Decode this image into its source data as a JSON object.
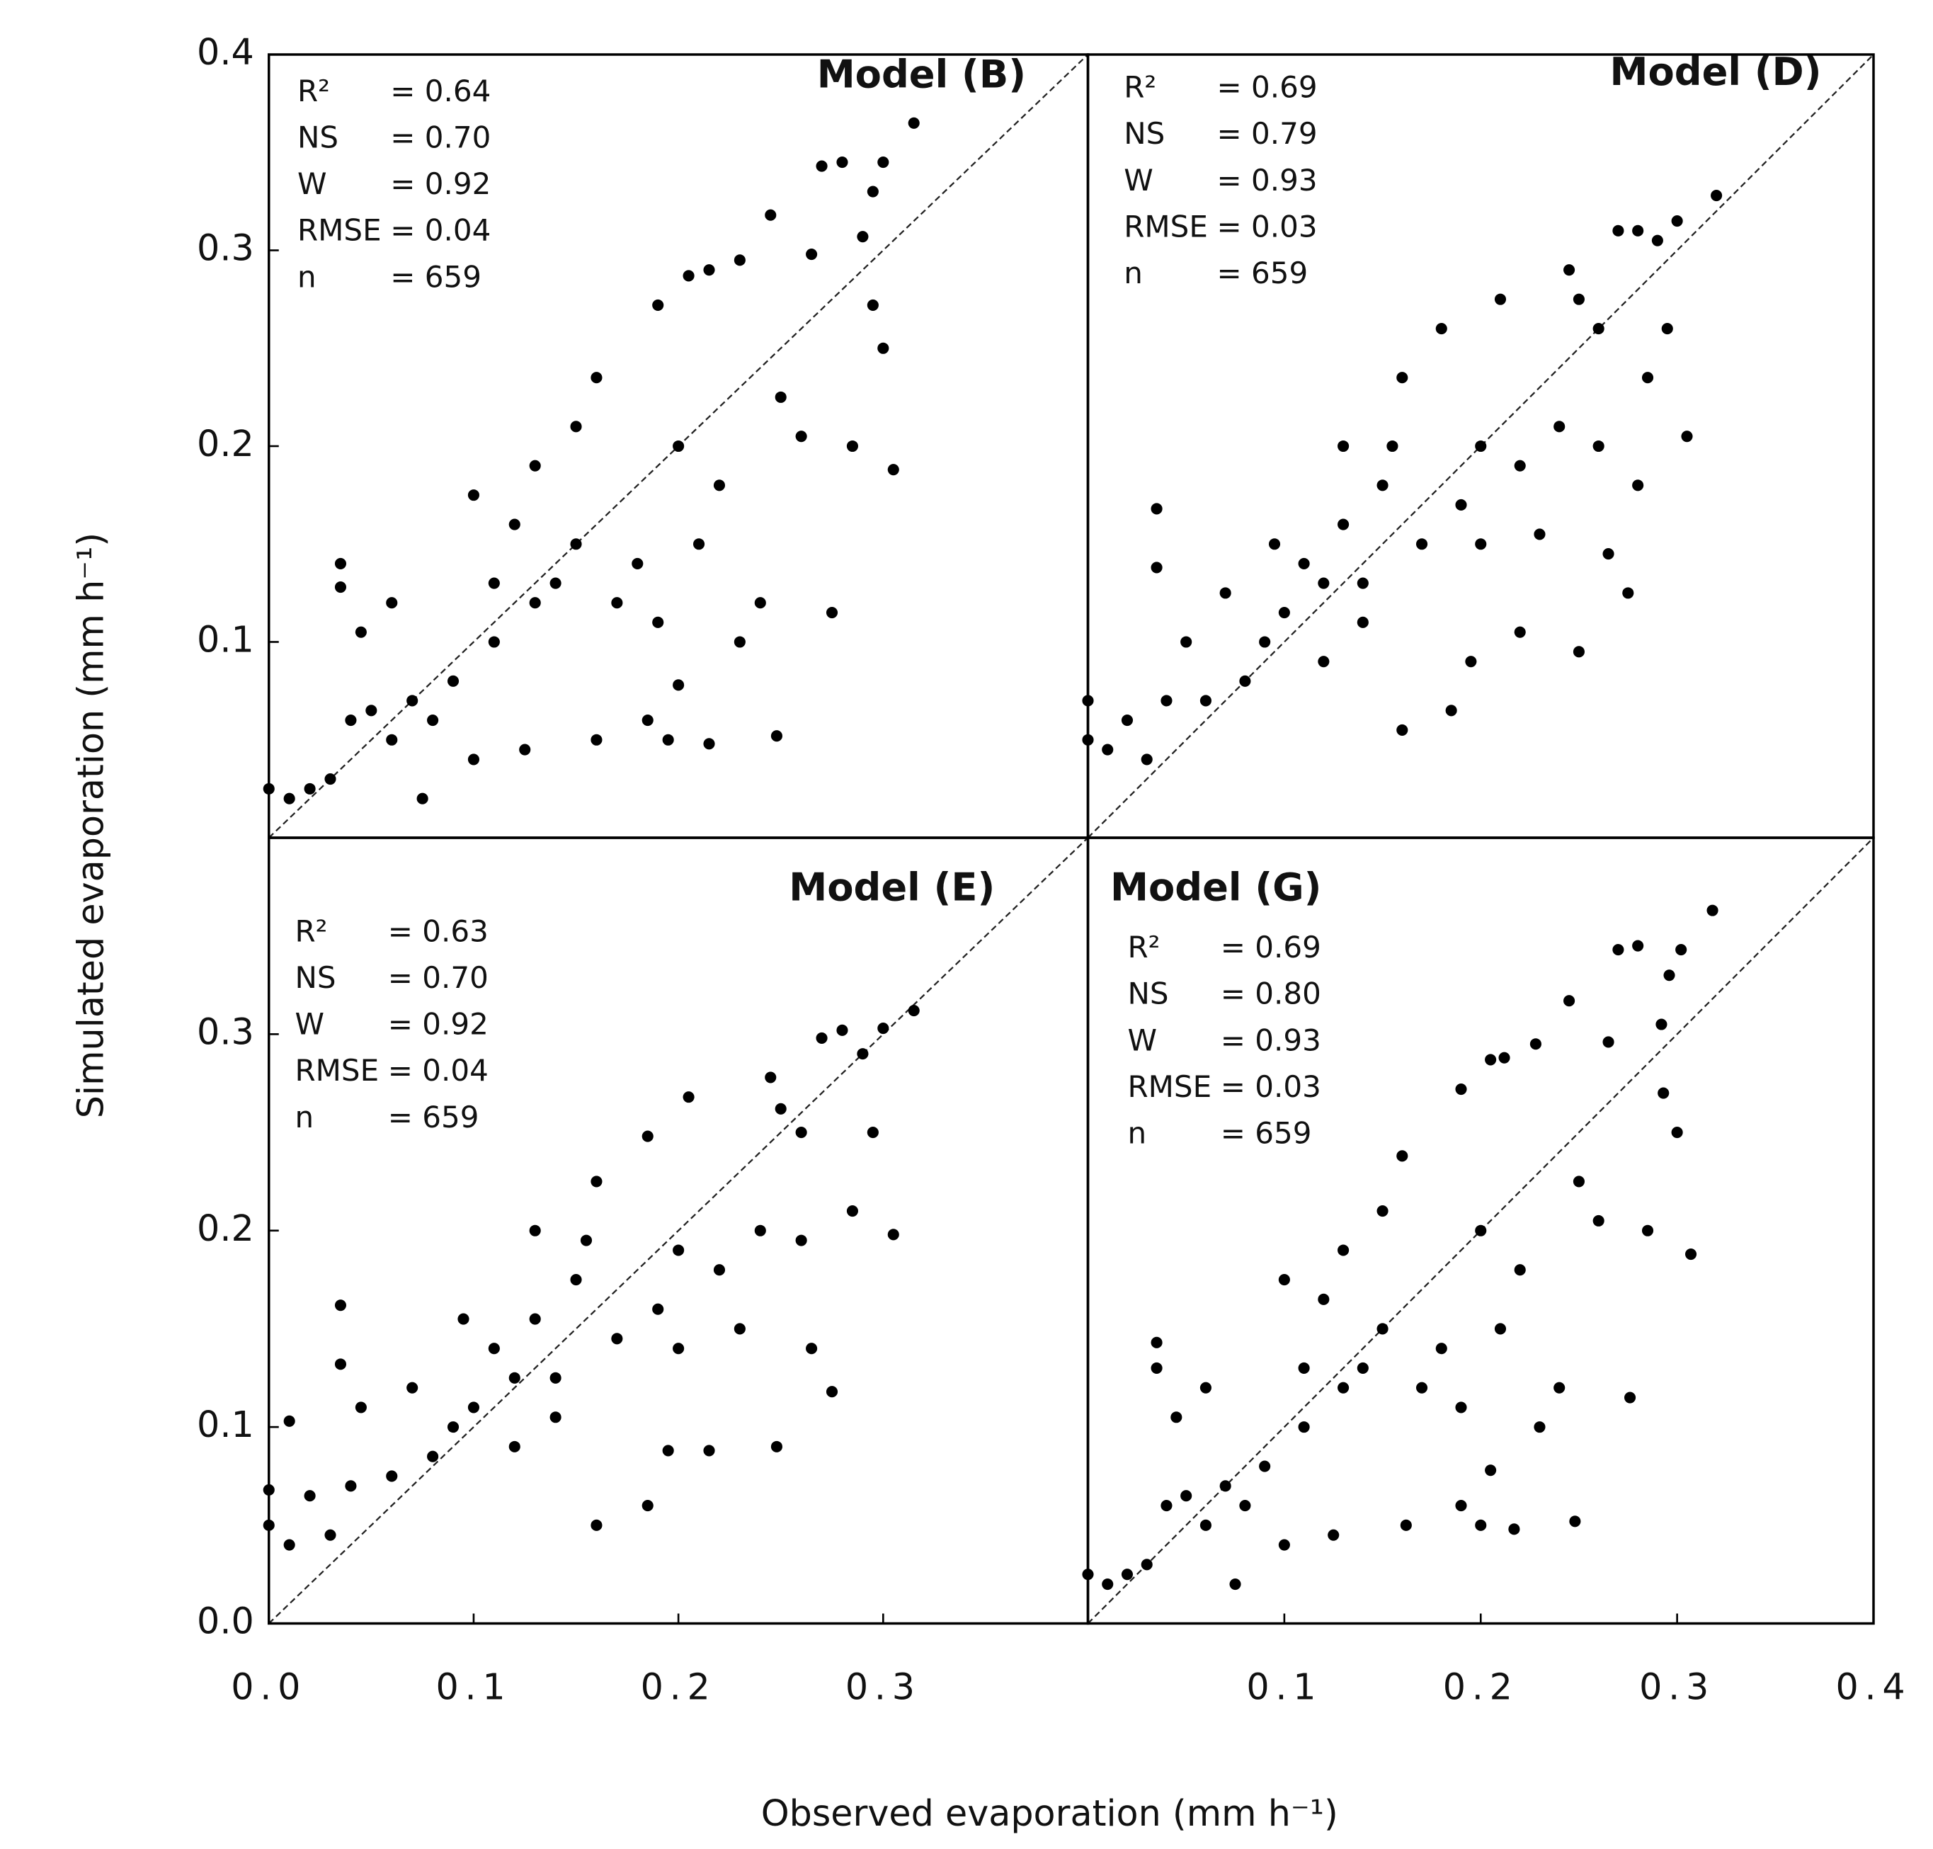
{
  "xlabel": "Observed evaporation (mm h⁻¹)",
  "ylabel": "Simulated evaporation (mm h⁻¹)",
  "chart_data": [
    {
      "type": "scatter",
      "title": "Model (B)",
      "stats": [
        {
          "label": "R²",
          "value": "= 0.64"
        },
        {
          "label": "NS",
          "value": "= 0.70"
        },
        {
          "label": "W",
          "value": "= 0.92"
        },
        {
          "label": "RMSE",
          "value": "= 0.04"
        },
        {
          "label": "n",
          "value": "= 659"
        }
      ],
      "xlim": [
        0,
        0.4
      ],
      "ylim": [
        0,
        0.4
      ],
      "yticks": [
        0.1,
        0.2,
        0.3,
        0.4
      ],
      "x": [
        0.315,
        0.3,
        0.295,
        0.28,
        0.27,
        0.29,
        0.295,
        0.3,
        0.305,
        0.285,
        0.275,
        0.265,
        0.245,
        0.23,
        0.215,
        0.205,
        0.19,
        0.26,
        0.25,
        0.24,
        0.248,
        0.215,
        0.195,
        0.185,
        0.16,
        0.2,
        0.16,
        0.15,
        0.13,
        0.1,
        0.12,
        0.14,
        0.17,
        0.2,
        0.21,
        0.22,
        0.11,
        0.09,
        0.08,
        0.07,
        0.06,
        0.05,
        0.04,
        0.03,
        0.02,
        0.01,
        0.0,
        0.035,
        0.035,
        0.045,
        0.075,
        0.1,
        0.125,
        0.18,
        0.19,
        0.23,
        0.13,
        0.15,
        0.06,
        0.11
      ],
      "values": [
        0.365,
        0.345,
        0.33,
        0.345,
        0.343,
        0.307,
        0.272,
        0.25,
        0.188,
        0.2,
        0.115,
        0.298,
        0.318,
        0.295,
        0.29,
        0.287,
        0.272,
        0.205,
        0.225,
        0.12,
        0.052,
        0.048,
        0.05,
        0.06,
        0.05,
        0.078,
        0.235,
        0.21,
        0.19,
        0.175,
        0.16,
        0.13,
        0.12,
        0.2,
        0.15,
        0.18,
        0.1,
        0.08,
        0.06,
        0.07,
        0.05,
        0.065,
        0.06,
        0.03,
        0.025,
        0.02,
        0.025,
        0.14,
        0.128,
        0.105,
        0.02,
        0.04,
        0.045,
        0.14,
        0.11,
        0.1,
        0.12,
        0.15,
        0.12,
        0.13
      ]
    },
    {
      "type": "scatter",
      "title": "Model (D)",
      "stats": [
        {
          "label": "R²",
          "value": "= 0.69"
        },
        {
          "label": "NS",
          "value": "= 0.79"
        },
        {
          "label": "W",
          "value": "= 0.93"
        },
        {
          "label": "RMSE",
          "value": "= 0.03"
        },
        {
          "label": "n",
          "value": "= 659"
        }
      ],
      "xlim": [
        0,
        0.4
      ],
      "ylim": [
        0,
        0.4
      ],
      "x": [
        0.32,
        0.3,
        0.29,
        0.28,
        0.27,
        0.245,
        0.25,
        0.26,
        0.295,
        0.305,
        0.285,
        0.28,
        0.275,
        0.26,
        0.265,
        0.25,
        0.22,
        0.195,
        0.185,
        0.16,
        0.18,
        0.21,
        0.16,
        0.2,
        0.22,
        0.23,
        0.15,
        0.13,
        0.12,
        0.1,
        0.09,
        0.14,
        0.17,
        0.19,
        0.08,
        0.06,
        0.04,
        0.02,
        0.0,
        0.0,
        0.01,
        0.03,
        0.035,
        0.035,
        0.05,
        0.07,
        0.11,
        0.095,
        0.13,
        0.12,
        0.14,
        0.2,
        0.24,
        0.155
      ],
      "values": [
        0.328,
        0.315,
        0.305,
        0.31,
        0.31,
        0.29,
        0.275,
        0.26,
        0.26,
        0.205,
        0.235,
        0.18,
        0.125,
        0.2,
        0.145,
        0.095,
        0.105,
        0.09,
        0.065,
        0.055,
        0.26,
        0.275,
        0.235,
        0.2,
        0.19,
        0.155,
        0.18,
        0.16,
        0.13,
        0.115,
        0.1,
        0.13,
        0.15,
        0.17,
        0.08,
        0.07,
        0.07,
        0.06,
        0.07,
        0.05,
        0.045,
        0.04,
        0.168,
        0.138,
        0.1,
        0.125,
        0.14,
        0.15,
        0.2,
        0.09,
        0.11,
        0.15,
        0.21,
        0.2
      ]
    },
    {
      "type": "scatter",
      "title": "Model (E)",
      "stats": [
        {
          "label": "R²",
          "value": "= 0.63"
        },
        {
          "label": "NS",
          "value": "= 0.70"
        },
        {
          "label": "W",
          "value": "= 0.92"
        },
        {
          "label": "RMSE",
          "value": "= 0.04"
        },
        {
          "label": "n",
          "value": "= 659"
        }
      ],
      "xlim": [
        0,
        0.4
      ],
      "ylim": [
        0,
        0.4
      ],
      "xticks": [
        {
          "value": 0,
          "label": "0.0"
        },
        0.1,
        0.2,
        0.3
      ],
      "yticks": [
        {
          "value": 0,
          "label": "0.0"
        },
        0.1,
        0.2,
        0.3
      ],
      "x": [
        0.315,
        0.3,
        0.29,
        0.28,
        0.27,
        0.245,
        0.25,
        0.26,
        0.295,
        0.305,
        0.285,
        0.275,
        0.26,
        0.265,
        0.248,
        0.215,
        0.195,
        0.185,
        0.16,
        0.185,
        0.205,
        0.16,
        0.2,
        0.22,
        0.23,
        0.15,
        0.13,
        0.12,
        0.1,
        0.09,
        0.14,
        0.17,
        0.19,
        0.08,
        0.06,
        0.04,
        0.02,
        0.0,
        0.0,
        0.01,
        0.03,
        0.035,
        0.035,
        0.045,
        0.07,
        0.11,
        0.095,
        0.13,
        0.12,
        0.14,
        0.2,
        0.24,
        0.155,
        0.01
      ],
      "values": [
        0.312,
        0.303,
        0.29,
        0.302,
        0.298,
        0.278,
        0.262,
        0.25,
        0.25,
        0.198,
        0.21,
        0.118,
        0.195,
        0.14,
        0.09,
        0.088,
        0.088,
        0.06,
        0.05,
        0.248,
        0.268,
        0.225,
        0.19,
        0.18,
        0.15,
        0.175,
        0.155,
        0.125,
        0.11,
        0.1,
        0.125,
        0.145,
        0.16,
        0.085,
        0.075,
        0.07,
        0.065,
        0.068,
        0.05,
        0.04,
        0.045,
        0.162,
        0.132,
        0.11,
        0.12,
        0.14,
        0.155,
        0.2,
        0.09,
        0.105,
        0.14,
        0.2,
        0.195,
        0.103
      ]
    },
    {
      "type": "scatter",
      "title": "Model (G)",
      "stats": [
        {
          "label": "R²",
          "value": "= 0.69"
        },
        {
          "label": "NS",
          "value": "= 0.80"
        },
        {
          "label": "W",
          "value": "= 0.93"
        },
        {
          "label": "RMSE",
          "value": "= 0.03"
        },
        {
          "label": "n",
          "value": "= 659"
        }
      ],
      "xlim": [
        0,
        0.4
      ],
      "ylim": [
        0,
        0.4
      ],
      "xticks": [
        0.1,
        0.2,
        0.3,
        0.4
      ],
      "x": [
        0.318,
        0.302,
        0.296,
        0.28,
        0.27,
        0.292,
        0.293,
        0.3,
        0.307,
        0.285,
        0.276,
        0.265,
        0.245,
        0.228,
        0.212,
        0.205,
        0.19,
        0.26,
        0.25,
        0.24,
        0.248,
        0.217,
        0.2,
        0.19,
        0.162,
        0.205,
        0.16,
        0.15,
        0.13,
        0.1,
        0.12,
        0.14,
        0.17,
        0.2,
        0.21,
        0.22,
        0.11,
        0.09,
        0.08,
        0.07,
        0.06,
        0.05,
        0.04,
        0.03,
        0.02,
        0.01,
        0.0,
        0.035,
        0.035,
        0.045,
        0.075,
        0.1,
        0.125,
        0.18,
        0.19,
        0.23,
        0.13,
        0.15,
        0.06,
        0.11
      ],
      "values": [
        0.363,
        0.343,
        0.33,
        0.345,
        0.343,
        0.305,
        0.27,
        0.25,
        0.188,
        0.2,
        0.115,
        0.296,
        0.317,
        0.295,
        0.288,
        0.287,
        0.272,
        0.205,
        0.225,
        0.12,
        0.052,
        0.048,
        0.05,
        0.06,
        0.05,
        0.078,
        0.238,
        0.21,
        0.19,
        0.175,
        0.165,
        0.13,
        0.12,
        0.2,
        0.15,
        0.18,
        0.1,
        0.08,
        0.06,
        0.07,
        0.05,
        0.065,
        0.06,
        0.03,
        0.025,
        0.02,
        0.025,
        0.143,
        0.13,
        0.105,
        0.02,
        0.04,
        0.045,
        0.14,
        0.11,
        0.1,
        0.12,
        0.15,
        0.12,
        0.13
      ]
    }
  ]
}
